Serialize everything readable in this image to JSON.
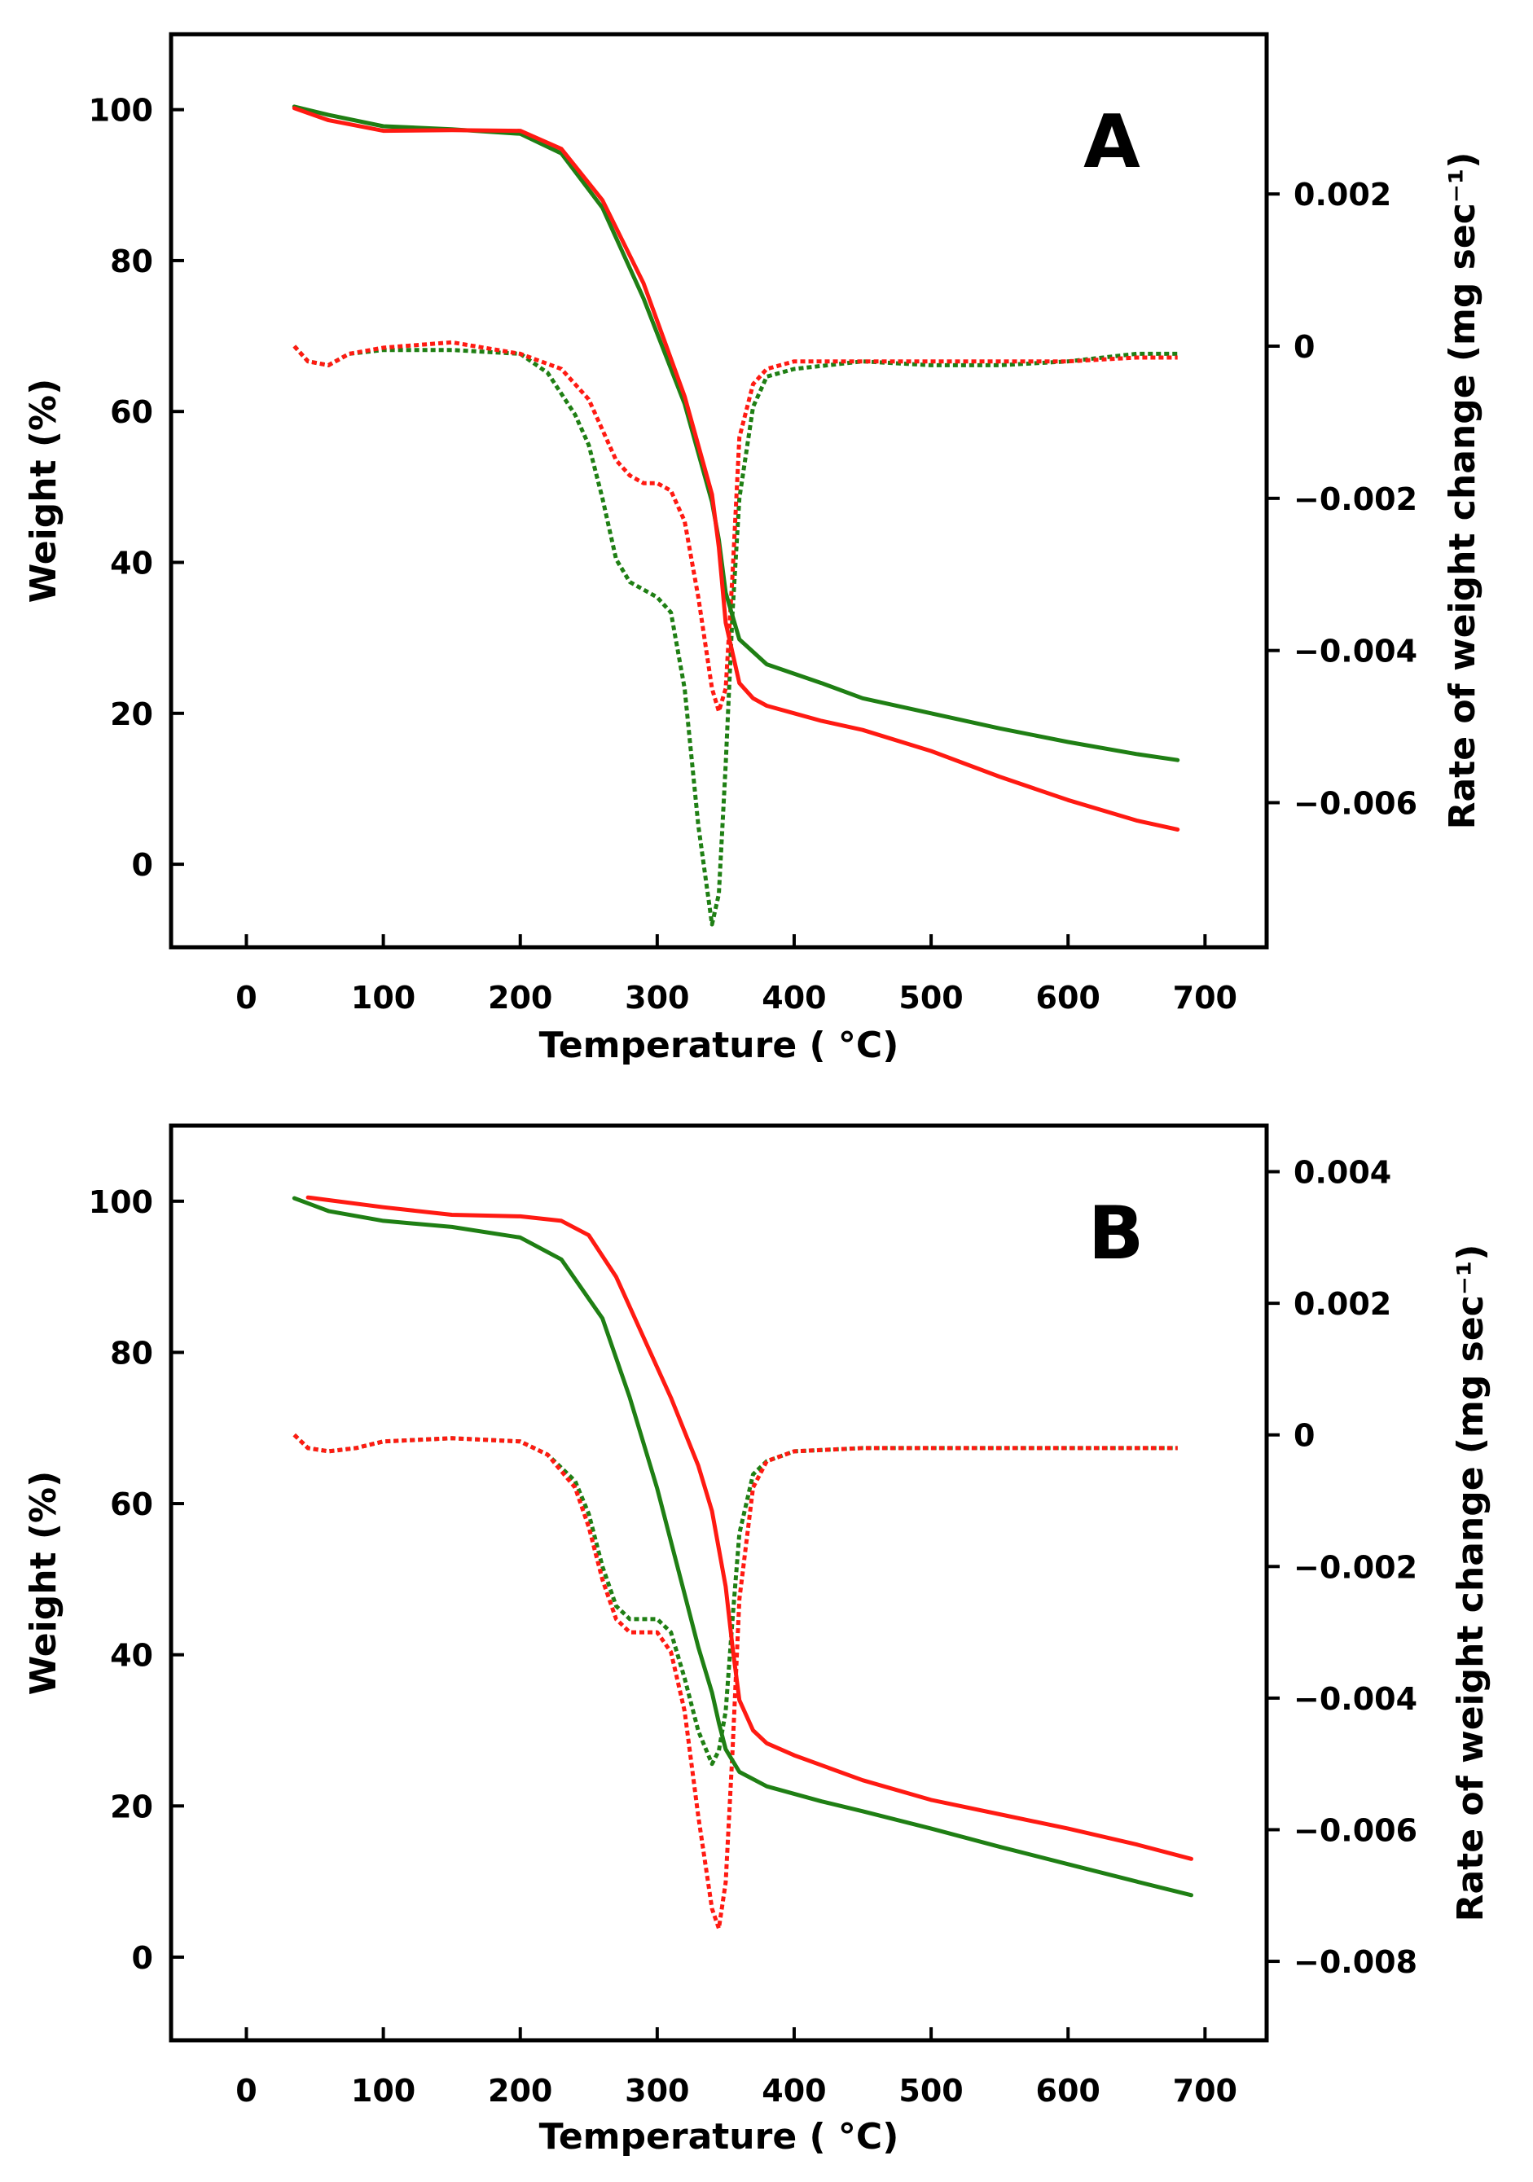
{
  "colors": {
    "red": "#ff1a12",
    "green": "#1f7f14",
    "axis": "#000000"
  },
  "chart_data": [
    {
      "type": "line",
      "panel_label": "A",
      "xlabel": "Temperature ( °C)",
      "ylabel": "Weight (%)",
      "y2label": "Rate of weight change (mg sec⁻¹)",
      "xlim": [
        -55,
        745
      ],
      "ylim": [
        -11,
        110
      ],
      "y2lim": [
        -0.0079,
        0.0041
      ],
      "xticks": [
        "0",
        "100",
        "200",
        "300",
        "400",
        "500",
        "600",
        "700"
      ],
      "yticks": [
        "0",
        "20",
        "40",
        "60",
        "80",
        "100"
      ],
      "y2ticks": [
        "0.002",
        "0",
        "−0.002",
        "−0.004",
        "−0.006"
      ],
      "series": [
        {
          "color": "green",
          "style": "solid",
          "axis": "left",
          "x": [
            35,
            60,
            100,
            150,
            200,
            230,
            260,
            290,
            320,
            340,
            345,
            350,
            360,
            380,
            420,
            450,
            500,
            550,
            600,
            650,
            680
          ],
          "y": [
            100.4,
            99.3,
            97.8,
            97.4,
            96.8,
            94.2,
            87,
            75,
            61,
            48,
            43,
            36,
            29.8,
            26.5,
            24,
            22,
            20,
            18,
            16.2,
            14.6,
            13.8
          ]
        },
        {
          "color": "red",
          "style": "solid",
          "axis": "left",
          "x": [
            35,
            60,
            100,
            150,
            200,
            230,
            260,
            290,
            320,
            340,
            345,
            350,
            360,
            370,
            380,
            400,
            420,
            450,
            500,
            550,
            600,
            650,
            680
          ],
          "y": [
            100.2,
            98.6,
            97.2,
            97.3,
            97.2,
            94.8,
            88,
            77,
            62,
            49,
            42,
            32,
            24,
            22,
            21,
            20,
            19,
            17.8,
            15,
            11.6,
            8.5,
            5.8,
            4.6
          ]
        },
        {
          "color": "green",
          "style": "dotted",
          "axis": "right",
          "x": [
            35,
            45,
            60,
            75,
            100,
            150,
            200,
            220,
            240,
            250,
            260,
            270,
            280,
            290,
            300,
            310,
            320,
            330,
            340,
            345,
            350,
            355,
            360,
            370,
            380,
            400,
            450,
            500,
            550,
            600,
            650,
            680
          ],
          "y": [
            0.0,
            -0.0002,
            -0.00025,
            -0.0001,
            -5e-05,
            -5e-05,
            -0.0001,
            -0.00035,
            -0.0009,
            -0.0013,
            -0.002,
            -0.0028,
            -0.0031,
            -0.0032,
            -0.0033,
            -0.0035,
            -0.0045,
            -0.0063,
            -0.0076,
            -0.0072,
            -0.0055,
            -0.0035,
            -0.002,
            -0.0008,
            -0.0004,
            -0.0003,
            -0.0002,
            -0.00025,
            -0.00025,
            -0.0002,
            -0.0001,
            -0.0001
          ]
        },
        {
          "color": "red",
          "style": "dotted",
          "axis": "right",
          "x": [
            35,
            45,
            60,
            75,
            100,
            150,
            200,
            230,
            250,
            260,
            270,
            280,
            290,
            300,
            310,
            320,
            330,
            340,
            345,
            350,
            355,
            360,
            370,
            380,
            400,
            450,
            500,
            550,
            600,
            650,
            680
          ],
          "y": [
            0.0,
            -0.0002,
            -0.00025,
            -0.0001,
            -2e-05,
            5e-05,
            -0.0001,
            -0.0003,
            -0.0007,
            -0.0011,
            -0.0015,
            -0.0017,
            -0.0018,
            -0.0018,
            -0.0019,
            -0.0023,
            -0.0033,
            -0.0045,
            -0.0048,
            -0.0045,
            -0.003,
            -0.0012,
            -0.0005,
            -0.0003,
            -0.0002,
            -0.0002,
            -0.0002,
            -0.0002,
            -0.0002,
            -0.00015,
            -0.00015
          ]
        }
      ]
    },
    {
      "type": "line",
      "panel_label": "B",
      "xlabel": "Temperature ( °C)",
      "ylabel": "Weight (%)",
      "y2label": "Rate of weight change (mg sec⁻¹)",
      "xlim": [
        -55,
        745
      ],
      "ylim": [
        -11,
        110
      ],
      "y2lim": [
        -0.0092,
        0.0047
      ],
      "xticks": [
        "0",
        "100",
        "200",
        "300",
        "400",
        "500",
        "600",
        "700"
      ],
      "yticks": [
        "0",
        "20",
        "40",
        "60",
        "80",
        "100"
      ],
      "y2ticks": [
        "0.004",
        "0.002",
        "0",
        "−0.002",
        "−0.004",
        "−0.006",
        "−0.008"
      ],
      "series": [
        {
          "color": "green",
          "style": "solid",
          "axis": "left",
          "x": [
            35,
            60,
            100,
            150,
            200,
            230,
            260,
            280,
            300,
            320,
            330,
            340,
            345,
            350,
            360,
            380,
            420,
            450,
            500,
            550,
            600,
            650,
            690
          ],
          "y": [
            100.4,
            98.7,
            97.4,
            96.6,
            95.2,
            92.3,
            84.5,
            74,
            62,
            48,
            41,
            35,
            31,
            27.5,
            24.5,
            22.6,
            20.6,
            19.3,
            17,
            14.6,
            12.3,
            10,
            8.2
          ]
        },
        {
          "color": "red",
          "style": "solid",
          "axis": "left",
          "x": [
            45,
            100,
            150,
            200,
            230,
            250,
            270,
            290,
            310,
            330,
            340,
            350,
            355,
            360,
            370,
            380,
            400,
            450,
            500,
            550,
            600,
            650,
            690
          ],
          "y": [
            100.5,
            99.2,
            98.2,
            98.0,
            97.4,
            95.5,
            90,
            82,
            74,
            65,
            59,
            49,
            41,
            34,
            30,
            28.3,
            26.7,
            23.4,
            20.8,
            18.9,
            17,
            14.9,
            13
          ]
        },
        {
          "color": "green",
          "style": "dotted",
          "axis": "right",
          "x": [
            35,
            45,
            60,
            80,
            100,
            150,
            200,
            220,
            240,
            250,
            260,
            270,
            280,
            290,
            300,
            310,
            320,
            330,
            340,
            345,
            350,
            355,
            360,
            370,
            380,
            400,
            450,
            500,
            550,
            600,
            650,
            680
          ],
          "y": [
            0.0,
            -0.0002,
            -0.00025,
            -0.0002,
            -0.0001,
            -5e-05,
            -0.0001,
            -0.0003,
            -0.0007,
            -0.0012,
            -0.002,
            -0.0026,
            -0.0028,
            -0.0028,
            -0.0028,
            -0.003,
            -0.0037,
            -0.0045,
            -0.005,
            -0.0048,
            -0.0042,
            -0.0028,
            -0.0015,
            -0.0006,
            -0.0004,
            -0.00025,
            -0.0002,
            -0.0002,
            -0.0002,
            -0.0002,
            -0.0002,
            -0.0002
          ]
        },
        {
          "color": "red",
          "style": "dotted",
          "axis": "right",
          "x": [
            35,
            45,
            60,
            80,
            100,
            150,
            200,
            220,
            240,
            250,
            260,
            270,
            280,
            290,
            300,
            310,
            320,
            330,
            340,
            345,
            350,
            355,
            360,
            370,
            380,
            400,
            450,
            500,
            550,
            600,
            650,
            680
          ],
          "y": [
            0.0,
            -0.0002,
            -0.00025,
            -0.0002,
            -0.0001,
            -5e-05,
            -0.0001,
            -0.0003,
            -0.0008,
            -0.0014,
            -0.0022,
            -0.0028,
            -0.003,
            -0.003,
            -0.003,
            -0.0033,
            -0.0042,
            -0.0058,
            -0.0072,
            -0.0075,
            -0.0068,
            -0.0048,
            -0.0025,
            -0.0008,
            -0.0004,
            -0.00025,
            -0.0002,
            -0.0002,
            -0.0002,
            -0.0002,
            -0.0002,
            -0.0002
          ]
        }
      ]
    }
  ]
}
